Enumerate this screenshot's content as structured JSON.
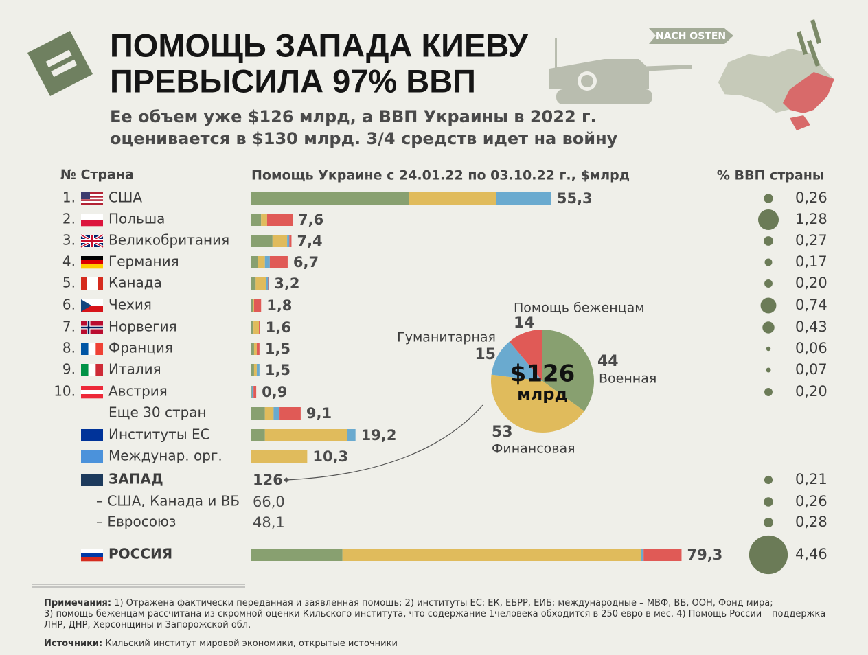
{
  "header": {
    "title_lines": [
      "ПОМОЩЬ ЗАПАДА КИЕВУ",
      "ПРЕВЫСИЛА 97% ВВП"
    ],
    "subtitle_lines": [
      "Ее объем уже $126 млрд, а ВВП Украины в 2022 г.",
      "оценивается в $130 млрд. 3/4 средств идет на войну"
    ],
    "badge": "NACH OSTEN"
  },
  "columns": {
    "country": "№ Страна",
    "aid": "Помощь Украине с 24.01.22 по 03.10.22 г., $млрд",
    "gdp": "% ВВП страны"
  },
  "segment_colors": [
    "#88a070",
    "#e0bb5c",
    "#6aaacf",
    "#e05a56"
  ],
  "dot_color": "#6b7b57",
  "rows": [
    {
      "num": "1.",
      "name": "США",
      "total": 55.3,
      "total_label": "55,3",
      "segments": [
        29.1,
        16.0,
        10.2,
        0
      ],
      "gdp": 0.26,
      "gdp_label": "0,26"
    },
    {
      "num": "2.",
      "name": "Польша",
      "total": 7.6,
      "total_label": "7,6",
      "segments": [
        1.8,
        1.1,
        0,
        4.7
      ],
      "gdp": 1.28,
      "gdp_label": "1,28"
    },
    {
      "num": "3.",
      "name": "Великобритания",
      "total": 7.4,
      "total_label": "7,4",
      "segments": [
        3.9,
        2.7,
        0.4,
        0.4
      ],
      "gdp": 0.27,
      "gdp_label": "0,27"
    },
    {
      "num": "4.",
      "name": "Германия",
      "total": 6.7,
      "total_label": "6,7",
      "segments": [
        1.2,
        1.3,
        0.9,
        3.3
      ],
      "gdp": 0.17,
      "gdp_label": "0,17"
    },
    {
      "num": "5.",
      "name": "Канада",
      "total": 3.2,
      "total_label": "3,2",
      "segments": [
        0.8,
        1.9,
        0.4,
        0.1
      ],
      "gdp": 0.2,
      "gdp_label": "0,20"
    },
    {
      "num": "6.",
      "name": "Чехия",
      "total": 1.8,
      "total_label": "1,8",
      "segments": [
        0.3,
        0.2,
        0,
        1.3
      ],
      "gdp": 0.74,
      "gdp_label": "0,74"
    },
    {
      "num": "7.",
      "name": "Норвегия",
      "total": 1.6,
      "total_label": "1,6",
      "segments": [
        0.4,
        1.0,
        0,
        0.2
      ],
      "gdp": 0.43,
      "gdp_label": "0,43"
    },
    {
      "num": "8.",
      "name": "Франция",
      "total": 1.5,
      "total_label": "1,5",
      "segments": [
        0.5,
        0.5,
        0,
        0.5
      ],
      "gdp": 0.06,
      "gdp_label": "0,06"
    },
    {
      "num": "9.",
      "name": "Италия",
      "total": 1.5,
      "total_label": "1,5",
      "segments": [
        0.5,
        0.5,
        0.5,
        0
      ],
      "gdp": 0.07,
      "gdp_label": "0,07"
    },
    {
      "num": "10.",
      "name": "Австрия",
      "total": 0.9,
      "total_label": "0,9",
      "segments": [
        0.1,
        0,
        0.3,
        0.5
      ],
      "gdp": 0.2,
      "gdp_label": "0,20"
    },
    {
      "name": "Еще 30 стран",
      "total": 9.1,
      "total_label": "9,1",
      "segments": [
        2.5,
        1.6,
        1.1,
        3.9
      ]
    },
    {
      "name": "Институты ЕС",
      "total": 19.2,
      "total_label": "19,2",
      "segments": [
        2.5,
        15.2,
        1.5,
        0
      ]
    },
    {
      "name": "Междунар. орг.",
      "total": 10.3,
      "total_label": "10,3",
      "segments": [
        0,
        10.3,
        0,
        0
      ]
    },
    {
      "name": "ЗАПАД",
      "total": 126,
      "gdp": 0.21,
      "gdp_label": "0,21",
      "bold": true
    },
    {
      "name": "– США, Канада и ВБ",
      "total": 66.0,
      "total_label": "66,0",
      "gdp": 0.26,
      "gdp_label": "0,26"
    },
    {
      "name": "– Евросоюз",
      "total": 48.1,
      "total_label": "48,1",
      "gdp": 0.28,
      "gdp_label": "0,28"
    },
    {
      "name": "РОССИЯ",
      "total": 79.3,
      "total_label": "79,3",
      "segments": [
        16.8,
        55.0,
        0.5,
        7.0
      ],
      "gdp": 4.46,
      "gdp_label": "4,46",
      "bold": true
    }
  ],
  "pie": {
    "total_label": "$126",
    "unit": "млрд",
    "slices": [
      {
        "name": "Военная",
        "value": 44
      },
      {
        "name": "Финансовая",
        "value": 53
      },
      {
        "name": "Гуманитарная",
        "value": 15
      },
      {
        "name": "Помощь беженцам",
        "value": 14
      }
    ]
  },
  "notes": {
    "label": "Примечания:",
    "lines": [
      " 1) Отражена фактически переданная и заявленная помощь; 2) институты ЕС: ЕК, ЕБРР, ЕИБ; международные – МВФ, ВБ, ООН, Фонд мира;",
      "3) помощь беженцам рассчитана из скромной оценки Кильского института, что содержание 1человека обходится в 250 евро в мес. 4) Помощь России – поддержка",
      "ЛНР, ДНР, Херсонщины и Запорожской обл."
    ]
  },
  "sources": {
    "label": "Источники:",
    "text": " Кильский институт мировой экономики, открытые источники"
  }
}
